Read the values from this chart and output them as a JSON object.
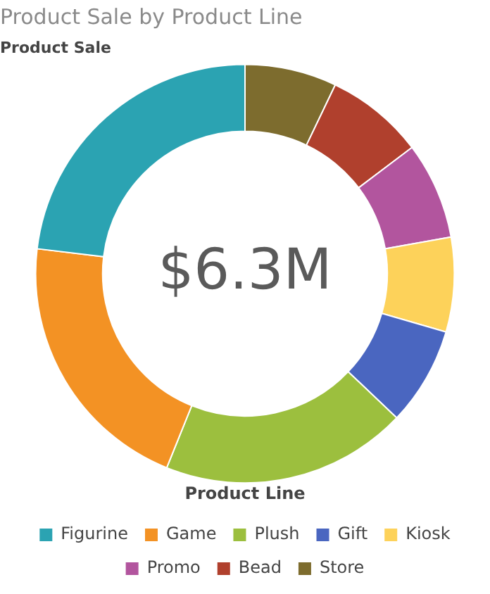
{
  "chart_data": {
    "type": "donut",
    "title": "Product Sale by Product Line",
    "subtitle": "Product Sale",
    "legend_title": "Product Line",
    "categories": [
      "Figurine",
      "Game",
      "Plush",
      "Gift",
      "Kiosk",
      "Promo",
      "Bead",
      "Store"
    ],
    "values": [
      23.1,
      20.8,
      19.0,
      7.6,
      7.3,
      7.5,
      7.6,
      7.1
    ],
    "colors": [
      "#2ba3b2",
      "#f39224",
      "#9cbf3e",
      "#4a66c0",
      "#fdd25a",
      "#b2559e",
      "#b0402d",
      "#7d6c2e"
    ],
    "legend": "bottom",
    "annotations": [
      "$6.3M"
    ]
  }
}
